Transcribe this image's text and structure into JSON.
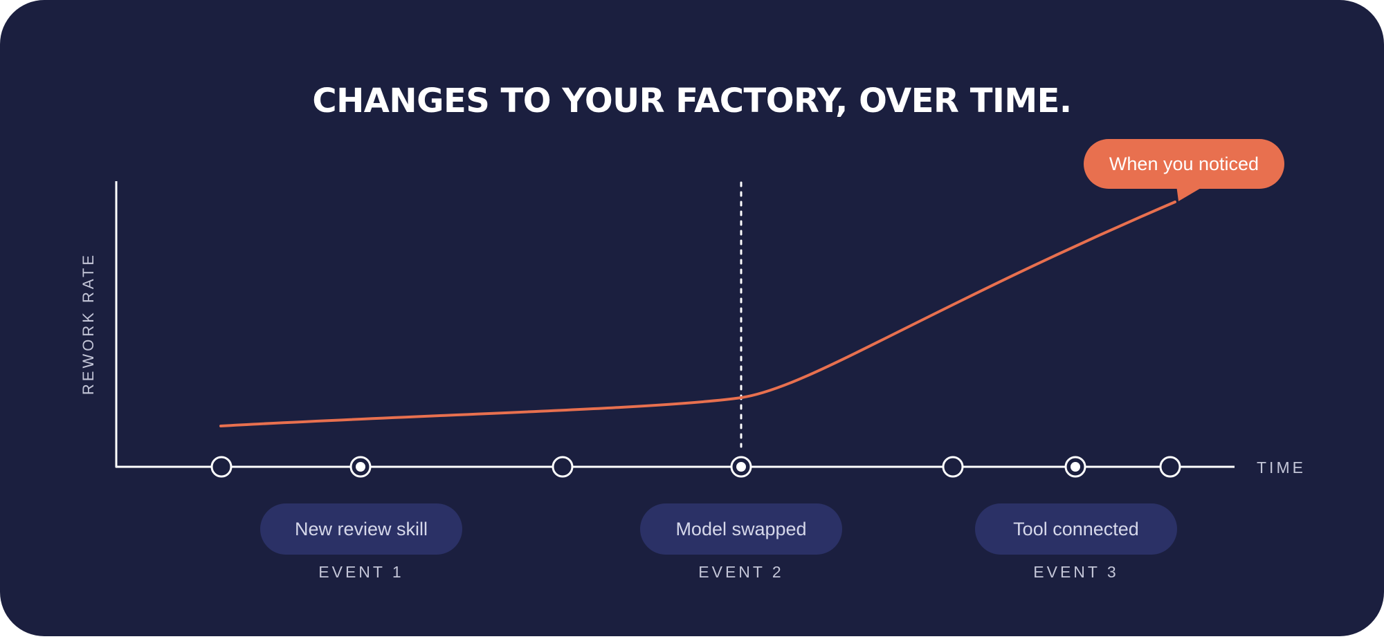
{
  "title": "CHANGES TO YOUR FACTORY, OVER TIME.",
  "axes": {
    "y_label": "REWORK RATE",
    "x_label": "TIME"
  },
  "callout": {
    "text": "When you noticed"
  },
  "events": [
    {
      "pill": "New review skill",
      "label": "EVENT 1"
    },
    {
      "pill": "Model swapped",
      "label": "EVENT 2"
    },
    {
      "pill": "Tool connected",
      "label": "EVENT 3"
    }
  ],
  "timeline_markers": [
    {
      "type": "empty"
    },
    {
      "type": "filled"
    },
    {
      "type": "empty"
    },
    {
      "type": "filled"
    },
    {
      "type": "empty"
    },
    {
      "type": "filled"
    },
    {
      "type": "empty"
    }
  ],
  "colors": {
    "background": "#1b1f3f",
    "curve": "#e8704f",
    "callout": "#e8704f",
    "pill": "#2b3166",
    "axis": "#ffffff",
    "label": "#c4c6d8"
  }
}
